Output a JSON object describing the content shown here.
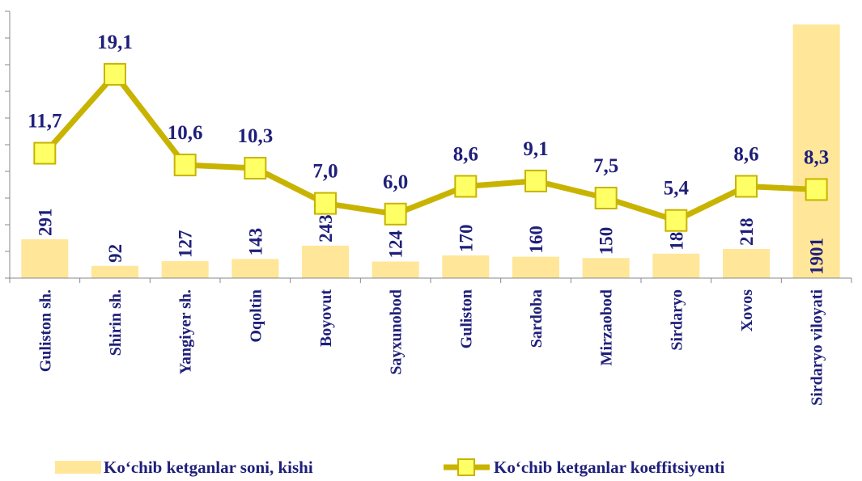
{
  "chart_data": {
    "type": "bar+line",
    "categories": [
      "Guliston sh.",
      "Shirin sh.",
      "Yangiyer sh.",
      "Oqoltin",
      "Boyovut",
      "Sayxunobod",
      "Guliston",
      "Sardoba",
      "Mirzaobod",
      "Sirdaryo",
      "Xovos",
      "Sirdaryo viloyati"
    ],
    "series": [
      {
        "name": "Ko‘chib ketganlar soni, kishi",
        "type": "bar",
        "color": "#ffe699",
        "values": [
          291,
          92,
          127,
          143,
          243,
          124,
          170,
          160,
          150,
          183,
          218,
          1901
        ]
      },
      {
        "name": "Ko‘chib ketganlar koeffitsiyenti",
        "type": "line",
        "axis": "y2",
        "color": "#c8b400",
        "marker_color": "#ffff66",
        "values": [
          11.7,
          19.1,
          10.6,
          10.3,
          7.0,
          6.0,
          8.6,
          9.1,
          7.5,
          5.4,
          8.6,
          8.3
        ],
        "value_labels": [
          "11,7",
          "19,1",
          "10,6",
          "10,3",
          "7,0",
          "6,0",
          "8,6",
          "9,1",
          "7,5",
          "5,4",
          "8,6",
          "8,3"
        ]
      }
    ],
    "ylim": [
      0,
      2000
    ],
    "yticks": [
      0,
      200,
      400,
      600,
      800,
      1000,
      1200,
      1400,
      1600,
      1800,
      2000
    ],
    "y2lim": [
      0,
      25
    ],
    "legend": "bottom"
  }
}
